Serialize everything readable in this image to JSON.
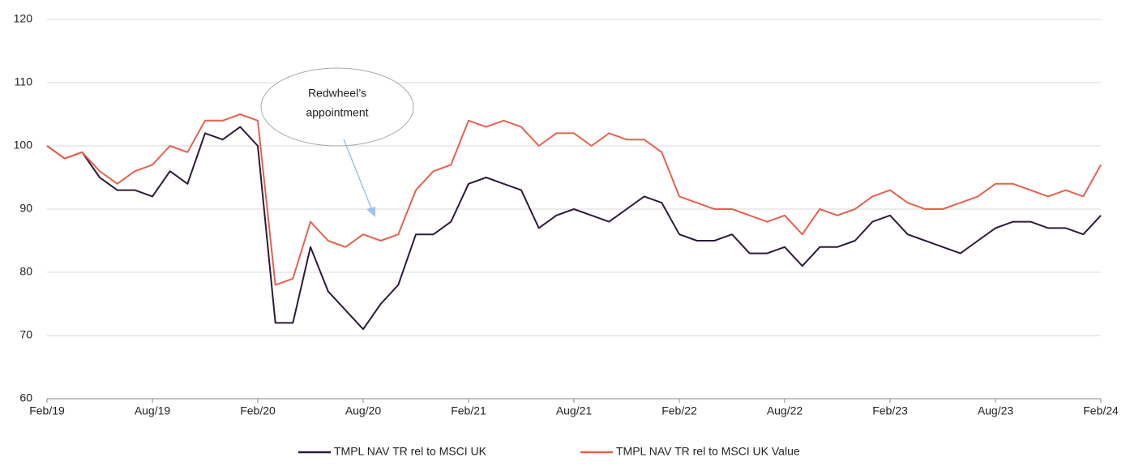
{
  "chart_data": {
    "type": "line",
    "categories": [
      "Feb/19",
      null,
      null,
      null,
      null,
      null,
      "Aug/19",
      null,
      null,
      null,
      null,
      null,
      "Feb/20",
      null,
      null,
      null,
      null,
      null,
      "Aug/20",
      null,
      null,
      null,
      null,
      null,
      "Feb/21",
      null,
      null,
      null,
      null,
      null,
      "Aug/21",
      null,
      null,
      null,
      null,
      null,
      "Feb/22",
      null,
      null,
      null,
      null,
      null,
      "Aug/22",
      null,
      null,
      null,
      null,
      null,
      "Feb/23",
      null,
      null,
      null,
      null,
      null,
      "Aug/23",
      null,
      null,
      null,
      null,
      null,
      "Feb/24"
    ],
    "series": [
      {
        "name": "TMPL NAV TR rel to MSCI UK",
        "color": "#2e1a3a",
        "values": [
          100,
          98,
          99,
          95,
          93,
          93,
          92,
          96,
          94,
          102,
          101,
          103,
          100,
          72,
          72,
          84,
          77,
          74,
          71,
          75,
          78,
          86,
          86,
          88,
          94,
          95,
          94,
          93,
          87,
          89,
          90,
          89,
          88,
          90,
          92,
          91,
          86,
          85,
          85,
          86,
          83,
          83,
          84,
          81,
          84,
          84,
          85,
          88,
          89,
          86,
          85,
          84,
          83,
          85,
          87,
          88,
          88,
          87,
          87,
          86,
          89
        ]
      },
      {
        "name": "TMPL NAV TR rel to MSCI UK Value",
        "color": "#e8604c",
        "values": [
          100,
          98,
          99,
          96,
          94,
          96,
          97,
          100,
          99,
          104,
          104,
          105,
          104,
          78,
          79,
          88,
          85,
          84,
          86,
          85,
          86,
          93,
          96,
          97,
          104,
          103,
          104,
          103,
          100,
          102,
          102,
          100,
          102,
          101,
          101,
          99,
          92,
          91,
          90,
          90,
          89,
          88,
          89,
          86,
          90,
          89,
          90,
          92,
          93,
          91,
          90,
          90,
          91,
          92,
          94,
          94,
          93,
          92,
          93,
          92,
          97
        ]
      }
    ],
    "ylim": [
      60,
      120
    ],
    "yticks": [
      60,
      70,
      80,
      90,
      100,
      110,
      120
    ],
    "grid": true,
    "legend": "bottom",
    "annotations": [
      {
        "text": [
          "Redwheel’s",
          "appointment"
        ]
      }
    ]
  }
}
